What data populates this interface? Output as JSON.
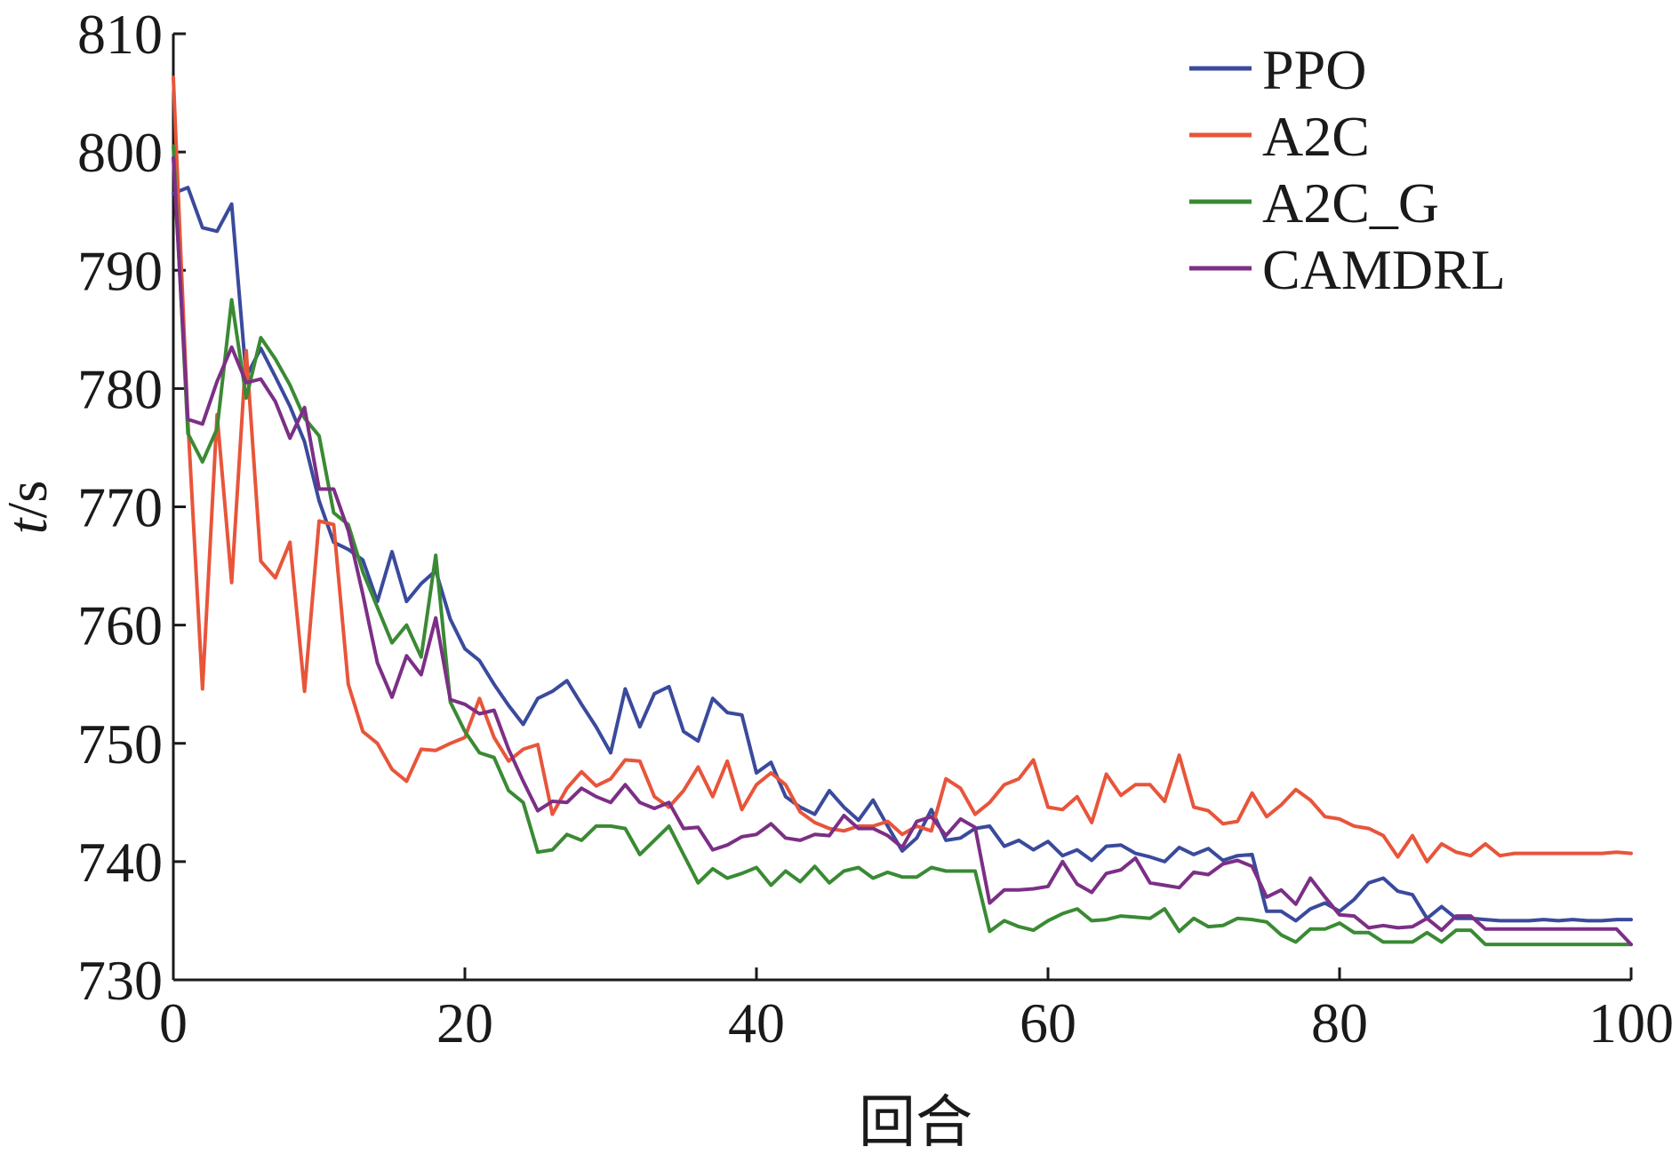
{
  "chart_data": {
    "type": "line",
    "xlabel": "回合",
    "ylabel_italic": "t",
    "ylabel_rest": "/s",
    "xlim": [
      0,
      100
    ],
    "ylim": [
      730,
      810
    ],
    "xticks": [
      0,
      20,
      40,
      60,
      80,
      100
    ],
    "yticks": [
      730,
      740,
      750,
      760,
      770,
      780,
      790,
      800,
      810
    ],
    "grid": false,
    "legend_position": "top-right",
    "x": [
      0,
      1,
      2,
      3,
      4,
      5,
      6,
      7,
      8,
      9,
      10,
      11,
      12,
      13,
      14,
      15,
      16,
      17,
      18,
      19,
      20,
      21,
      22,
      23,
      24,
      25,
      26,
      27,
      28,
      29,
      30,
      31,
      32,
      33,
      34,
      35,
      36,
      37,
      38,
      39,
      40,
      41,
      42,
      43,
      44,
      45,
      46,
      47,
      48,
      49,
      50,
      51,
      52,
      53,
      54,
      55,
      56,
      57,
      58,
      59,
      60,
      61,
      62,
      63,
      64,
      65,
      66,
      67,
      68,
      69,
      70,
      71,
      72,
      73,
      74,
      75,
      76,
      77,
      78,
      79,
      80,
      81,
      82,
      83,
      84,
      85,
      86,
      87,
      88,
      89,
      90,
      91,
      92,
      93,
      94,
      95,
      96,
      97,
      98,
      99,
      100
    ],
    "series": [
      {
        "name": "PPO",
        "color": "#3a4a9c",
        "values": [
          796.5,
          797,
          793.6,
          793.3,
          795.6,
          781,
          783.4,
          781,
          778.5,
          775.5,
          770.5,
          767,
          766.4,
          765.5,
          762,
          766.2,
          762,
          763.5,
          764.6,
          760.5,
          758,
          757,
          755,
          753.2,
          751.6,
          753.8,
          754.4,
          755.3,
          753.3,
          751.4,
          749.2,
          754.6,
          751.4,
          754.2,
          754.8,
          751,
          750.2,
          753.8,
          752.6,
          752.4,
          747.5,
          748.4,
          745.5,
          744.6,
          744,
          746,
          744.6,
          743.5,
          745.2,
          743,
          740.9,
          742,
          744.4,
          741.8,
          742,
          742.8,
          743,
          741.3,
          741.8,
          741,
          741.7,
          740.5,
          741,
          740.1,
          741.3,
          741.4,
          740.7,
          740.4,
          740,
          741.2,
          740.6,
          741.1,
          740.1,
          740.5,
          740.6,
          735.8,
          735.8,
          735,
          736,
          736.5,
          735.8,
          736.8,
          738.2,
          738.6,
          737.5,
          737.2,
          735.2,
          736.2,
          735.2,
          735.2,
          735.1,
          735,
          735,
          735,
          735.1,
          735,
          735.1,
          735,
          735,
          735.1,
          735.1
        ]
      },
      {
        "name": "A2C",
        "color": "#e8553a",
        "values": [
          806.3,
          777.2,
          754.6,
          777.8,
          763.6,
          783.2,
          765.4,
          764,
          767,
          754.4,
          768.8,
          768.5,
          755,
          751,
          750,
          747.8,
          746.8,
          749.5,
          749.4,
          750,
          750.5,
          753.8,
          750.5,
          748.5,
          749.5,
          749.9,
          744,
          746.2,
          747.6,
          746.4,
          747,
          748.6,
          748.5,
          745.5,
          744.6,
          746,
          748,
          745.5,
          748.5,
          744.4,
          746.5,
          747.5,
          746.5,
          744.2,
          743.3,
          742.8,
          742.6,
          743,
          743,
          743.4,
          742.3,
          743,
          742.6,
          747,
          746.2,
          744,
          745,
          746.5,
          747,
          748.6,
          744.6,
          744.4,
          745.5,
          743.3,
          747.4,
          745.6,
          746.5,
          746.5,
          745.1,
          749,
          744.6,
          744.3,
          743.2,
          743.4,
          745.8,
          743.8,
          744.8,
          746.1,
          745.2,
          743.8,
          743.6,
          743,
          742.8,
          742.2,
          740.4,
          742.2,
          740,
          741.5,
          740.8,
          740.5,
          741.5,
          740.5,
          740.7,
          740.7,
          740.7,
          740.7,
          740.7,
          740.7,
          740.7,
          740.8,
          740.7
        ]
      },
      {
        "name": "A2C_G",
        "color": "#3a8a34",
        "values": [
          800.5,
          776.2,
          773.8,
          776.6,
          787.5,
          779.2,
          784.3,
          782.5,
          780.3,
          777.5,
          776,
          769.5,
          768.5,
          764.5,
          761.5,
          758.5,
          760,
          757.3,
          765.9,
          753.5,
          751,
          749.2,
          748.8,
          746,
          745,
          740.8,
          741,
          742.3,
          741.8,
          743,
          743,
          742.8,
          740.6,
          741.8,
          743,
          740.6,
          738.2,
          739.4,
          738.6,
          739,
          739.5,
          738,
          739.2,
          738.3,
          739.6,
          738.2,
          739.2,
          739.5,
          738.6,
          739.1,
          738.7,
          738.7,
          739.5,
          739.2,
          739.2,
          739.2,
          734.1,
          735,
          734.5,
          734.2,
          735,
          735.6,
          736,
          735,
          735.1,
          735.4,
          735.3,
          735.2,
          736,
          734.1,
          735.2,
          734.5,
          734.6,
          735.2,
          735.1,
          734.9,
          733.8,
          733.2,
          734.3,
          734.3,
          734.8,
          734,
          734,
          733.2,
          733.2,
          733.2,
          734,
          733.2,
          734.2,
          734.2,
          733,
          733,
          733,
          733,
          733,
          733,
          733,
          733,
          733,
          733,
          733
        ]
      },
      {
        "name": "CAMDRL",
        "color": "#7c2f86",
        "values": [
          799.5,
          777.4,
          777,
          780.6,
          783.5,
          780.5,
          780.8,
          778.9,
          775.8,
          778.4,
          771.5,
          771.5,
          768,
          762.6,
          756.8,
          753.9,
          757.4,
          755.8,
          760.6,
          753.7,
          753.3,
          752.5,
          752.8,
          749.5,
          746.8,
          744.3,
          745.1,
          745,
          746.2,
          745.5,
          745,
          746.5,
          745,
          744.5,
          745,
          742.8,
          742.9,
          741,
          741.4,
          742.1,
          742.3,
          743.2,
          742,
          741.8,
          742.3,
          742.2,
          743.9,
          742.8,
          742.8,
          742.2,
          741.2,
          743.4,
          743.8,
          742.2,
          743.6,
          742.9,
          736.5,
          737.6,
          737.6,
          737.7,
          737.9,
          740,
          738.1,
          737.4,
          739,
          739.3,
          740.3,
          738.2,
          738,
          737.8,
          739.1,
          738.9,
          739.8,
          740.1,
          739.6,
          737,
          737.6,
          736.4,
          738.6,
          737,
          735.5,
          735.4,
          734.4,
          734.6,
          734.4,
          734.5,
          735.2,
          734.2,
          735.4,
          735.4,
          734.3,
          734.3,
          734.3,
          734.3,
          734.3,
          734.3,
          734.3,
          734.3,
          734.3,
          734.3,
          733
        ]
      }
    ]
  }
}
